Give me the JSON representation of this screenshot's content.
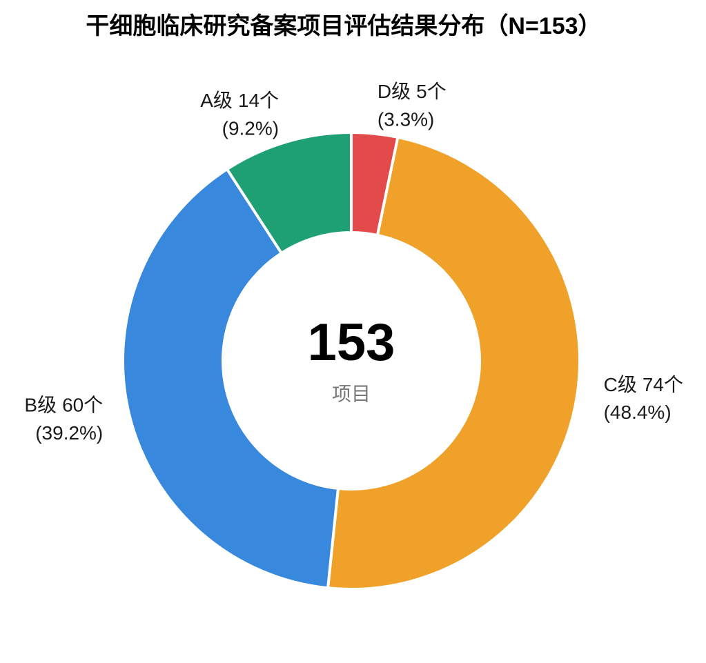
{
  "chart_data": {
    "type": "donut",
    "title": "干细胞临床研究备案项目评估结果分布（N=153）",
    "categories": [
      "D级",
      "C级",
      "B级",
      "A级"
    ],
    "values": [
      5,
      74,
      60,
      14
    ],
    "value_labels": [
      "5个",
      "74个",
      "60个",
      "14个"
    ],
    "percent_labels": [
      "(3.3%)",
      "(48.4%)",
      "(39.2%)",
      "(9.2%)"
    ],
    "colors": [
      "#e34b4b",
      "#efa12a",
      "#3889dd",
      "#1fa074"
    ],
    "center_value": 153,
    "center_label": "项目"
  }
}
